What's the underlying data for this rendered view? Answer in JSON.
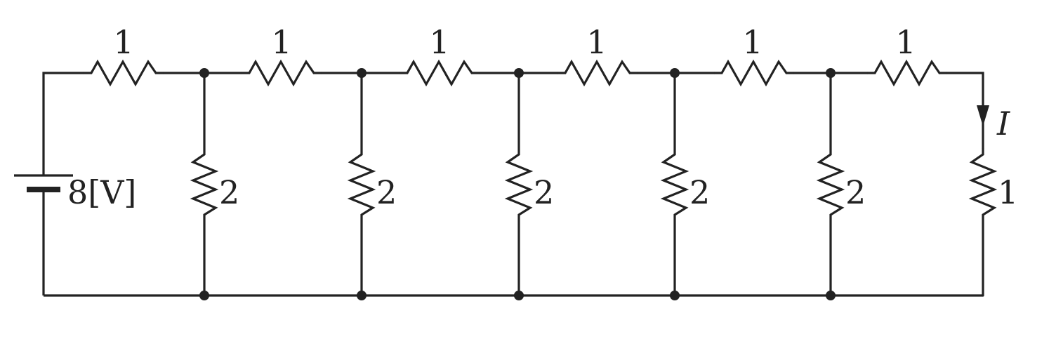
{
  "diagram": {
    "source": {
      "label": "8[V]"
    },
    "series_resistors": [
      "1",
      "1",
      "1",
      "1",
      "1",
      "1"
    ],
    "shunt_resistors": [
      "2",
      "2",
      "2",
      "2",
      "2"
    ],
    "load_resistor": "1",
    "current_label": "I"
  }
}
